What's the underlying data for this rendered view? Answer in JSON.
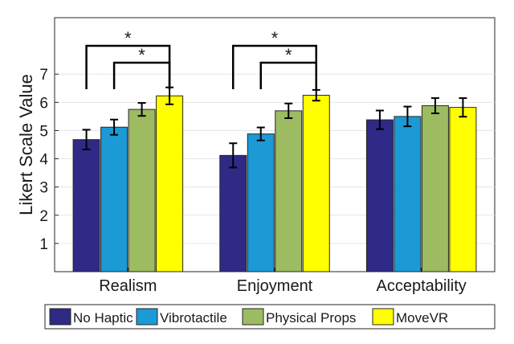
{
  "chart_data": {
    "type": "bar",
    "categories": [
      "Realism",
      "Enjoyment",
      "Acceptability"
    ],
    "series": [
      {
        "name": "No Haptic",
        "color": "#2e2a86",
        "values": [
          4.68,
          4.12,
          5.38
        ],
        "errors": [
          0.35,
          0.43,
          0.33
        ]
      },
      {
        "name": "Vibrotactile",
        "color": "#1b9ad6",
        "values": [
          5.12,
          4.88,
          5.5
        ],
        "errors": [
          0.27,
          0.23,
          0.35
        ]
      },
      {
        "name": "Physical Props",
        "color": "#9dbb61",
        "values": [
          5.75,
          5.7,
          5.88
        ],
        "errors": [
          0.23,
          0.26,
          0.27
        ]
      },
      {
        "name": "MoveVR",
        "color": "#ffff00",
        "values": [
          6.23,
          6.25,
          5.82
        ],
        "errors": [
          0.3,
          0.19,
          0.33
        ]
      }
    ],
    "ylabel": "Likert Scale Value",
    "xlabel": "",
    "ylim": [
      0,
      9
    ],
    "yticks": [
      1,
      2,
      3,
      4,
      5,
      6,
      7
    ],
    "grid": "horizontal",
    "legend": "bottom",
    "significance": [
      {
        "category": "Realism",
        "from": "No Haptic",
        "to": "MoveVR",
        "label": "*"
      },
      {
        "category": "Realism",
        "from": "Vibrotactile",
        "to": "MoveVR",
        "label": "*"
      },
      {
        "category": "Enjoyment",
        "from": "No Haptic",
        "to": "MoveVR",
        "label": "*"
      },
      {
        "category": "Enjoyment",
        "from": "Vibrotactile",
        "to": "MoveVR",
        "label": "*"
      }
    ]
  }
}
